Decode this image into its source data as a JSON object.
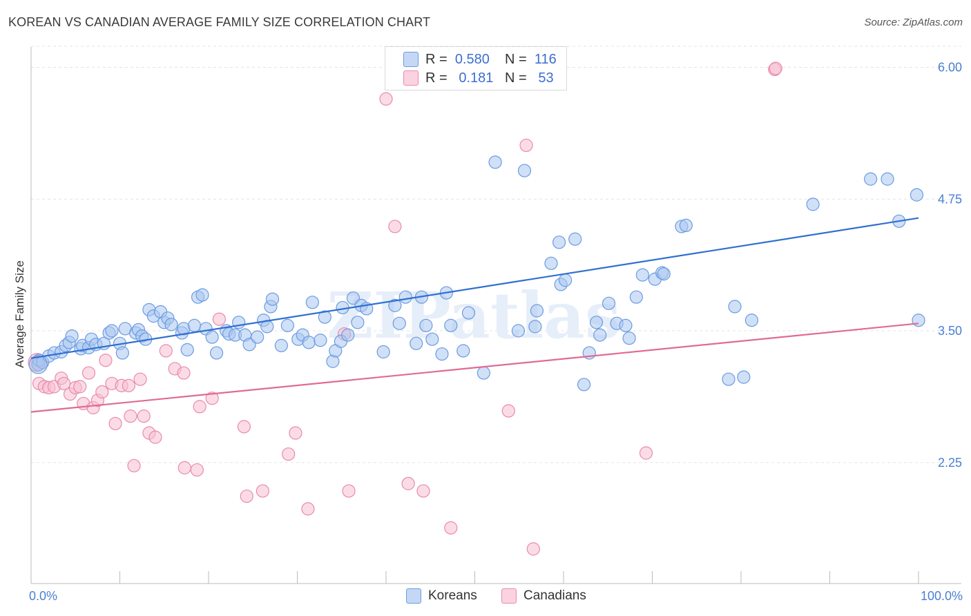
{
  "title": "KOREAN VS CANADIAN AVERAGE FAMILY SIZE CORRELATION CHART",
  "source": "Source: ZipAtlas.com",
  "watermark": "ZIPatlas",
  "colors": {
    "koreans_fill": "#a9c6f0",
    "koreans_stroke": "#6a9be0",
    "koreans_line": "#2f6fd0",
    "canadians_fill": "#f7bfd2",
    "canadians_stroke": "#e88aab",
    "canadians_line": "#e06a95",
    "tick_text": "#4a7fd4",
    "grid": "#e3e3e3"
  },
  "legend_top": {
    "rows": [
      {
        "r_label": "R =",
        "r_value": "0.580",
        "n_label": "N =",
        "n_value": "116"
      },
      {
        "r_label": "R =",
        "r_value": "0.181",
        "n_label": "N =",
        "n_value": "53"
      }
    ]
  },
  "legend_bottom": [
    "Koreans",
    "Canadians"
  ],
  "chart_data": {
    "type": "scatter",
    "title": "KOREAN VS CANADIAN AVERAGE FAMILY SIZE CORRELATION CHART",
    "xlabel": "",
    "ylabel": "Average Family Size",
    "xlim": [
      0,
      100
    ],
    "ylim": [
      1.05,
      6.2
    ],
    "x_tick_labels": [
      "0.0%",
      "100.0%"
    ],
    "y_ticks": [
      2.25,
      3.5,
      4.75,
      6.0
    ],
    "y_tick_labels": [
      "2.25",
      "3.50",
      "4.75",
      "6.00"
    ],
    "grid": "horizontal dashed",
    "legend_position": "bottom",
    "series": [
      {
        "name": "Koreans",
        "trend": {
          "x0": 0,
          "y0": 3.24,
          "x1": 100,
          "y1": 4.57
        },
        "points": [
          [
            0.8,
            3.18
          ],
          [
            0.9,
            3.22
          ],
          [
            1.3,
            3.2
          ],
          [
            2,
            3.26
          ],
          [
            2.6,
            3.29
          ],
          [
            3.4,
            3.3
          ],
          [
            3.9,
            3.36
          ],
          [
            4.3,
            3.39
          ],
          [
            4.6,
            3.45
          ],
          [
            5.6,
            3.33
          ],
          [
            5.8,
            3.36
          ],
          [
            6.5,
            3.34
          ],
          [
            6.8,
            3.42
          ],
          [
            7.3,
            3.37
          ],
          [
            8.2,
            3.38
          ],
          [
            8.8,
            3.48
          ],
          [
            9.1,
            3.5
          ],
          [
            10,
            3.38
          ],
          [
            10.3,
            3.29
          ],
          [
            10.6,
            3.52
          ],
          [
            11.8,
            3.48
          ],
          [
            12.1,
            3.51
          ],
          [
            12.5,
            3.45
          ],
          [
            12.9,
            3.42
          ],
          [
            13.3,
            3.7
          ],
          [
            13.8,
            3.64
          ],
          [
            14.6,
            3.68
          ],
          [
            15,
            3.58
          ],
          [
            15.4,
            3.62
          ],
          [
            15.8,
            3.56
          ],
          [
            17,
            3.48
          ],
          [
            17.2,
            3.52
          ],
          [
            17.6,
            3.32
          ],
          [
            18.4,
            3.55
          ],
          [
            18.8,
            3.82
          ],
          [
            19.3,
            3.84
          ],
          [
            19.7,
            3.52
          ],
          [
            20.4,
            3.44
          ],
          [
            20.9,
            3.29
          ],
          [
            22,
            3.5
          ],
          [
            22.3,
            3.47
          ],
          [
            23,
            3.46
          ],
          [
            23.4,
            3.58
          ],
          [
            24.1,
            3.46
          ],
          [
            24.6,
            3.37
          ],
          [
            25.5,
            3.44
          ],
          [
            26.2,
            3.6
          ],
          [
            26.6,
            3.54
          ],
          [
            27,
            3.73
          ],
          [
            27.2,
            3.8
          ],
          [
            28.2,
            3.36
          ],
          [
            28.9,
            3.55
          ],
          [
            30.1,
            3.42
          ],
          [
            30.6,
            3.46
          ],
          [
            31.3,
            3.39
          ],
          [
            31.7,
            3.77
          ],
          [
            32.6,
            3.41
          ],
          [
            33.1,
            3.63
          ],
          [
            34,
            3.21
          ],
          [
            34.3,
            3.31
          ],
          [
            34.9,
            3.4
          ],
          [
            35.1,
            3.72
          ],
          [
            35.7,
            3.46
          ],
          [
            36.3,
            3.81
          ],
          [
            36.8,
            3.58
          ],
          [
            37.2,
            3.74
          ],
          [
            37.8,
            3.71
          ],
          [
            39.7,
            3.3
          ],
          [
            41,
            3.74
          ],
          [
            41.5,
            3.57
          ],
          [
            42.2,
            3.82
          ],
          [
            43.4,
            3.38
          ],
          [
            44,
            3.82
          ],
          [
            44.5,
            3.55
          ],
          [
            45.2,
            3.42
          ],
          [
            46.3,
            3.28
          ],
          [
            46.8,
            3.86
          ],
          [
            47.3,
            3.55
          ],
          [
            48.7,
            3.31
          ],
          [
            49.3,
            3.67
          ],
          [
            51,
            3.1
          ],
          [
            52.3,
            5.1
          ],
          [
            54.9,
            3.5
          ],
          [
            55.6,
            5.02
          ],
          [
            56.8,
            3.54
          ],
          [
            57,
            3.69
          ],
          [
            58.6,
            4.14
          ],
          [
            59.5,
            4.34
          ],
          [
            59.7,
            3.94
          ],
          [
            60.2,
            3.98
          ],
          [
            61.3,
            4.37
          ],
          [
            62.3,
            2.99
          ],
          [
            62.9,
            3.29
          ],
          [
            63.7,
            3.58
          ],
          [
            64.1,
            3.46
          ],
          [
            65.1,
            3.76
          ],
          [
            66,
            3.57
          ],
          [
            67,
            3.55
          ],
          [
            67.4,
            3.43
          ],
          [
            68.2,
            3.82
          ],
          [
            68.9,
            4.03
          ],
          [
            70.3,
            3.99
          ],
          [
            71.1,
            4.05
          ],
          [
            71.3,
            4.04
          ],
          [
            73.3,
            4.49
          ],
          [
            73.8,
            4.5
          ],
          [
            78.6,
            3.04
          ],
          [
            79.3,
            3.73
          ],
          [
            80.3,
            3.06
          ],
          [
            81.2,
            3.6
          ],
          [
            88.1,
            4.7
          ],
          [
            94.6,
            4.94
          ],
          [
            96.5,
            4.94
          ],
          [
            97.8,
            4.54
          ],
          [
            99.8,
            4.79
          ],
          [
            100,
            3.6
          ]
        ]
      },
      {
        "name": "Canadians",
        "trend": {
          "x0": 0,
          "y0": 2.73,
          "x1": 100,
          "y1": 3.57
        },
        "points": [
          [
            0.7,
            3.2
          ],
          [
            0.9,
            3.0
          ],
          [
            1.5,
            2.97
          ],
          [
            2,
            2.96
          ],
          [
            2.6,
            2.97
          ],
          [
            3.4,
            3.05
          ],
          [
            3.7,
            3.0
          ],
          [
            4.4,
            2.9
          ],
          [
            5,
            2.96
          ],
          [
            5.5,
            2.97
          ],
          [
            5.9,
            2.81
          ],
          [
            6.5,
            3.1
          ],
          [
            7,
            2.77
          ],
          [
            7.5,
            2.84
          ],
          [
            8,
            2.92
          ],
          [
            8.4,
            3.22
          ],
          [
            9.1,
            3.0
          ],
          [
            9.5,
            2.62
          ],
          [
            10.2,
            2.98
          ],
          [
            11,
            2.98
          ],
          [
            11.2,
            2.69
          ],
          [
            11.6,
            2.22
          ],
          [
            12.3,
            3.04
          ],
          [
            12.7,
            2.69
          ],
          [
            13.3,
            2.53
          ],
          [
            14,
            2.49
          ],
          [
            15.2,
            3.31
          ],
          [
            16.2,
            3.14
          ],
          [
            17.2,
            3.1
          ],
          [
            17.3,
            2.2
          ],
          [
            18.7,
            2.18
          ],
          [
            19,
            2.78
          ],
          [
            20.4,
            2.86
          ],
          [
            21.2,
            3.61
          ],
          [
            24,
            2.59
          ],
          [
            24.3,
            1.93
          ],
          [
            26.1,
            1.98
          ],
          [
            29,
            2.33
          ],
          [
            29.8,
            2.53
          ],
          [
            31.2,
            1.81
          ],
          [
            35.3,
            3.47
          ],
          [
            35.8,
            1.98
          ],
          [
            40,
            5.7
          ],
          [
            41,
            4.49
          ],
          [
            42.5,
            2.05
          ],
          [
            44.2,
            1.98
          ],
          [
            47.3,
            1.63
          ],
          [
            53.8,
            2.74
          ],
          [
            55.8,
            5.26
          ],
          [
            56.6,
            1.43
          ],
          [
            69.3,
            2.34
          ],
          [
            83.8,
            5.98
          ],
          [
            83.9,
            5.99
          ]
        ]
      }
    ]
  }
}
